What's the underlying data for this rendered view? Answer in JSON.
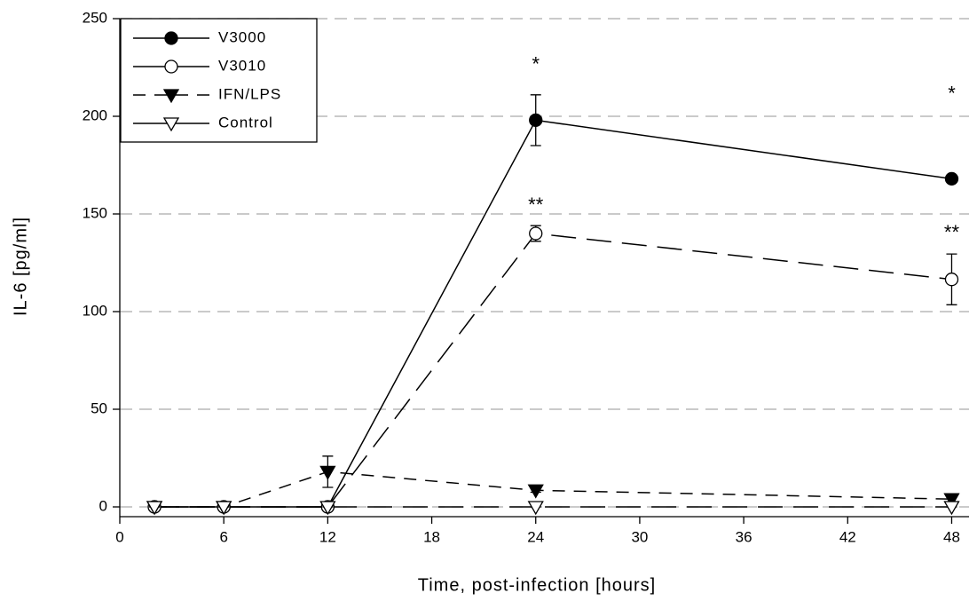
{
  "chart_data": {
    "type": "line",
    "x_label": "Time, post-infection [hours]",
    "y_label": "IL-6 [pg/ml]",
    "x": [
      2,
      6,
      12,
      24,
      48
    ],
    "xlim": [
      0,
      49
    ],
    "xticks": [
      0,
      6,
      12,
      18,
      24,
      30,
      36,
      42,
      48
    ],
    "ylim": [
      -5,
      250
    ],
    "yticks": [
      0,
      50,
      100,
      150,
      200,
      250
    ],
    "grid": true,
    "legend": "upper left",
    "series": [
      {
        "name": "V3000",
        "color": "#000000",
        "marker": "circle",
        "filled": true,
        "dash": "solid",
        "values": [
          0,
          0,
          0,
          198,
          168
        ],
        "errors": [
          0,
          0,
          0,
          13,
          1.5
        ]
      },
      {
        "name": "V3010",
        "color": "#000000",
        "marker": "circle",
        "filled": false,
        "dash": "long-dash",
        "values": [
          0,
          0,
          0,
          140,
          116.5
        ],
        "errors": [
          0,
          0,
          0,
          4,
          13
        ]
      },
      {
        "name": "IFN/LPS",
        "color": "#000000",
        "marker": "triangle-down",
        "filled": true,
        "dash": "dash",
        "values": [
          0,
          0,
          18,
          8.5,
          4
        ],
        "errors": [
          0,
          0,
          8,
          1,
          2
        ]
      },
      {
        "name": "Control",
        "color": "#000000",
        "marker": "triangle-down",
        "filled": false,
        "dash": "long-dash",
        "values": [
          0,
          0,
          0,
          0,
          0
        ],
        "errors": [
          0,
          0,
          0,
          0,
          0
        ]
      }
    ],
    "annotations": [
      {
        "text": "*",
        "x": 24,
        "y": 226
      },
      {
        "text": "*",
        "x": 48,
        "y": 211
      },
      {
        "text": "**",
        "x": 24,
        "y": 154
      },
      {
        "text": "**",
        "x": 48,
        "y": 140
      }
    ]
  }
}
